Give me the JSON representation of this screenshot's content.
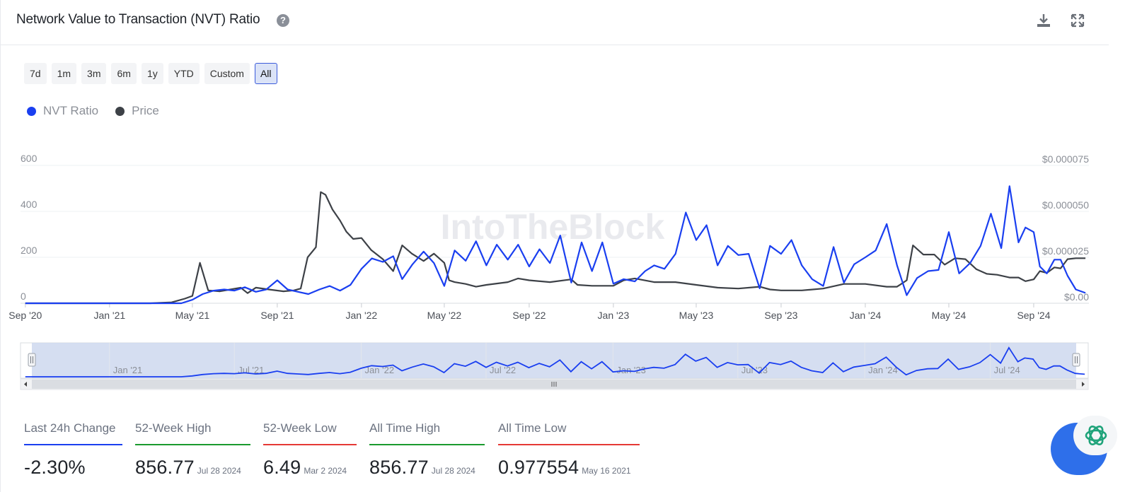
{
  "header": {
    "title": "Network Value to Transaction (NVT) Ratio",
    "help_icon": "question-circle-icon",
    "download_icon": "download-icon",
    "fullscreen_icon": "expand-icon"
  },
  "ranges": [
    "7d",
    "1m",
    "3m",
    "6m",
    "1y",
    "YTD",
    "Custom",
    "All"
  ],
  "active_range": "All",
  "legend": [
    {
      "name": "NVT Ratio",
      "color": "#1a3ff0"
    },
    {
      "name": "Price",
      "color": "#3d4147"
    }
  ],
  "watermark": "IntoTheBlock",
  "navigator": {
    "labels": [
      "Jan '21",
      "Jul '21",
      "Jan '22",
      "Jul '22",
      "Jan '23",
      "Jul '23",
      "Jan '24",
      "Jul '24"
    ]
  },
  "chart_data": {
    "type": "line",
    "title": "Network Value to Transaction (NVT) Ratio",
    "x_tick_labels": [
      "Sep '20",
      "Jan '21",
      "May '21",
      "Sep '21",
      "Jan '22",
      "May '22",
      "Sep '22",
      "Jan '23",
      "May '23",
      "Sep '23",
      "Jan '24",
      "May '24",
      "Sep '24"
    ],
    "y_left_ticks": [
      "0",
      "200",
      "400",
      "600"
    ],
    "y_right_ticks": [
      "$0.00",
      "$0.000025",
      "$0.000050",
      "$0.000075"
    ],
    "y_left_range": [
      0,
      600
    ],
    "y_right_range": [
      0,
      7.5e-05
    ],
    "grid": true,
    "legend_position": "top-left",
    "series": [
      {
        "name": "NVT Ratio",
        "axis": "left",
        "color": "#1a3ff0",
        "points": [
          [
            "2020-09-01",
            0
          ],
          [
            "2020-11-01",
            0
          ],
          [
            "2021-01-01",
            0
          ],
          [
            "2021-03-01",
            0
          ],
          [
            "2021-04-15",
            0
          ],
          [
            "2021-05-01",
            15
          ],
          [
            "2021-05-16",
            40
          ],
          [
            "2021-06-01",
            55
          ],
          [
            "2021-06-16",
            60
          ],
          [
            "2021-07-01",
            55
          ],
          [
            "2021-07-16",
            70
          ],
          [
            "2021-08-01",
            50
          ],
          [
            "2021-08-16",
            60
          ],
          [
            "2021-09-01",
            100
          ],
          [
            "2021-09-16",
            60
          ],
          [
            "2021-10-01",
            50
          ],
          [
            "2021-10-16",
            40
          ],
          [
            "2021-11-01",
            60
          ],
          [
            "2021-11-16",
            75
          ],
          [
            "2021-12-01",
            55
          ],
          [
            "2021-12-16",
            80
          ],
          [
            "2022-01-01",
            150
          ],
          [
            "2022-01-16",
            195
          ],
          [
            "2022-02-01",
            180
          ],
          [
            "2022-02-16",
            205
          ],
          [
            "2022-03-01",
            105
          ],
          [
            "2022-03-16",
            170
          ],
          [
            "2022-04-01",
            225
          ],
          [
            "2022-04-16",
            175
          ],
          [
            "2022-05-01",
            75
          ],
          [
            "2022-05-16",
            230
          ],
          [
            "2022-06-01",
            185
          ],
          [
            "2022-06-16",
            270
          ],
          [
            "2022-07-01",
            165
          ],
          [
            "2022-07-16",
            255
          ],
          [
            "2022-08-01",
            190
          ],
          [
            "2022-08-16",
            255
          ],
          [
            "2022-09-01",
            160
          ],
          [
            "2022-09-16",
            235
          ],
          [
            "2022-10-01",
            175
          ],
          [
            "2022-10-16",
            295
          ],
          [
            "2022-11-01",
            90
          ],
          [
            "2022-11-16",
            265
          ],
          [
            "2022-12-01",
            140
          ],
          [
            "2022-12-16",
            265
          ],
          [
            "2023-01-01",
            85
          ],
          [
            "2023-01-16",
            105
          ],
          [
            "2023-02-01",
            95
          ],
          [
            "2023-02-16",
            140
          ],
          [
            "2023-03-01",
            165
          ],
          [
            "2023-03-16",
            150
          ],
          [
            "2023-04-01",
            215
          ],
          [
            "2023-04-16",
            395
          ],
          [
            "2023-05-01",
            275
          ],
          [
            "2023-05-16",
            340
          ],
          [
            "2023-06-01",
            165
          ],
          [
            "2023-06-16",
            250
          ],
          [
            "2023-07-01",
            210
          ],
          [
            "2023-07-16",
            215
          ],
          [
            "2023-08-01",
            65
          ],
          [
            "2023-08-16",
            250
          ],
          [
            "2023-09-01",
            215
          ],
          [
            "2023-09-16",
            275
          ],
          [
            "2023-10-01",
            165
          ],
          [
            "2023-10-16",
            105
          ],
          [
            "2023-11-01",
            75
          ],
          [
            "2023-11-16",
            245
          ],
          [
            "2023-12-01",
            90
          ],
          [
            "2023-12-16",
            170
          ],
          [
            "2024-01-01",
            200
          ],
          [
            "2024-01-16",
            230
          ],
          [
            "2024-02-01",
            345
          ],
          [
            "2024-02-16",
            165
          ],
          [
            "2024-03-01",
            35
          ],
          [
            "2024-03-16",
            110
          ],
          [
            "2024-04-01",
            140
          ],
          [
            "2024-04-16",
            145
          ],
          [
            "2024-05-01",
            310
          ],
          [
            "2024-05-16",
            130
          ],
          [
            "2024-06-01",
            175
          ],
          [
            "2024-06-16",
            250
          ],
          [
            "2024-07-01",
            390
          ],
          [
            "2024-07-16",
            240
          ],
          [
            "2024-07-28",
            510
          ],
          [
            "2024-08-10",
            265
          ],
          [
            "2024-08-20",
            330
          ],
          [
            "2024-09-01",
            310
          ],
          [
            "2024-09-10",
            160
          ],
          [
            "2024-09-20",
            130
          ],
          [
            "2024-10-01",
            190
          ],
          [
            "2024-10-10",
            190
          ],
          [
            "2024-10-20",
            120
          ],
          [
            "2024-11-01",
            60
          ],
          [
            "2024-11-15",
            45
          ]
        ]
      },
      {
        "name": "Price",
        "axis": "right",
        "color": "#3d4147",
        "points": [
          [
            "2020-09-01",
            0
          ],
          [
            "2020-11-01",
            0
          ],
          [
            "2021-01-01",
            0
          ],
          [
            "2021-03-01",
            0
          ],
          [
            "2021-04-01",
            5e-07
          ],
          [
            "2021-04-20",
            2.5e-06
          ],
          [
            "2021-05-01",
            4e-06
          ],
          [
            "2021-05-12",
            2.2e-05
          ],
          [
            "2021-05-24",
            7e-06
          ],
          [
            "2021-06-10",
            6.5e-06
          ],
          [
            "2021-06-25",
            7.5e-06
          ],
          [
            "2021-07-10",
            8.5e-06
          ],
          [
            "2021-07-20",
            5.5e-06
          ],
          [
            "2021-08-01",
            8.5e-06
          ],
          [
            "2021-08-20",
            7.5e-06
          ],
          [
            "2021-09-10",
            6.5e-06
          ],
          [
            "2021-09-25",
            7e-06
          ],
          [
            "2021-10-05",
            8e-06
          ],
          [
            "2021-10-15",
            2.5e-05
          ],
          [
            "2021-10-27",
            3.05e-05
          ],
          [
            "2021-11-03",
            6.05e-05
          ],
          [
            "2021-11-10",
            5.9e-05
          ],
          [
            "2021-11-20",
            5.1e-05
          ],
          [
            "2021-12-01",
            4.5e-05
          ],
          [
            "2021-12-10",
            3.9e-05
          ],
          [
            "2021-12-20",
            3.5e-05
          ],
          [
            "2022-01-01",
            3.55e-05
          ],
          [
            "2022-01-15",
            2.9e-05
          ],
          [
            "2022-02-01",
            2.4e-05
          ],
          [
            "2022-02-16",
            1.75e-05
          ],
          [
            "2022-03-01",
            3.15e-05
          ],
          [
            "2022-03-15",
            2.7e-05
          ],
          [
            "2022-04-01",
            2.3e-05
          ],
          [
            "2022-04-16",
            2.7e-05
          ],
          [
            "2022-05-01",
            2.2e-05
          ],
          [
            "2022-05-08",
            1.25e-05
          ],
          [
            "2022-05-16",
            1.15e-05
          ],
          [
            "2022-06-01",
            1.05e-05
          ],
          [
            "2022-06-16",
            9e-06
          ],
          [
            "2022-07-01",
            1e-05
          ],
          [
            "2022-08-01",
            1.15e-05
          ],
          [
            "2022-08-16",
            1.35e-05
          ],
          [
            "2022-09-01",
            1.25e-05
          ],
          [
            "2022-10-01",
            1.15e-05
          ],
          [
            "2022-11-01",
            1.3e-05
          ],
          [
            "2022-11-10",
            1e-05
          ],
          [
            "2022-12-01",
            9.5e-06
          ],
          [
            "2023-01-01",
            9.5e-06
          ],
          [
            "2023-01-16",
            1.25e-05
          ],
          [
            "2023-02-01",
            1.35e-05
          ],
          [
            "2023-03-01",
            1.15e-05
          ],
          [
            "2023-04-01",
            1.15e-05
          ],
          [
            "2023-05-01",
            1e-05
          ],
          [
            "2023-06-01",
            8.5e-06
          ],
          [
            "2023-07-01",
            8e-06
          ],
          [
            "2023-08-01",
            9e-06
          ],
          [
            "2023-08-16",
            7.5e-06
          ],
          [
            "2023-09-01",
            7e-06
          ],
          [
            "2023-10-01",
            7e-06
          ],
          [
            "2023-11-01",
            8e-06
          ],
          [
            "2023-12-01",
            1.05e-05
          ],
          [
            "2024-01-01",
            1.05e-05
          ],
          [
            "2024-02-01",
            9e-06
          ],
          [
            "2024-02-16",
            9e-06
          ],
          [
            "2024-03-01",
            1.25e-05
          ],
          [
            "2024-03-10",
            3.15e-05
          ],
          [
            "2024-03-25",
            2.65e-05
          ],
          [
            "2024-04-10",
            2.65e-05
          ],
          [
            "2024-04-25",
            2.1e-05
          ],
          [
            "2024-05-10",
            2.45e-05
          ],
          [
            "2024-05-25",
            2.4e-05
          ],
          [
            "2024-06-10",
            1.85e-05
          ],
          [
            "2024-06-25",
            1.6e-05
          ],
          [
            "2024-07-10",
            1.55e-05
          ],
          [
            "2024-07-28",
            1.4e-05
          ],
          [
            "2024-08-10",
            1.4e-05
          ],
          [
            "2024-08-20",
            1.2e-05
          ],
          [
            "2024-09-01",
            1.3e-05
          ],
          [
            "2024-09-10",
            1.75e-05
          ],
          [
            "2024-09-20",
            1.65e-05
          ],
          [
            "2024-10-01",
            1.95e-05
          ],
          [
            "2024-10-10",
            1.9e-05
          ],
          [
            "2024-10-20",
            2.4e-05
          ],
          [
            "2024-11-01",
            2.45e-05
          ],
          [
            "2024-11-15",
            2.45e-05
          ]
        ]
      }
    ]
  },
  "stats": [
    {
      "label": "Last 24h Change",
      "value": "-2.30%",
      "date": "",
      "color": "#1a3ff0"
    },
    {
      "label": "52-Week High",
      "value": "856.77",
      "date": "Jul 28 2024",
      "color": "#1a9a2e"
    },
    {
      "label": "52-Week Low",
      "value": "6.49",
      "date": "Mar 2 2024",
      "color": "#e53935"
    },
    {
      "label": "All Time High",
      "value": "856.77",
      "date": "Jul 28 2024",
      "color": "#1a9a2e"
    },
    {
      "label": "All Time Low",
      "value": "0.977554",
      "date": "May 16 2021",
      "color": "#e53935"
    }
  ]
}
